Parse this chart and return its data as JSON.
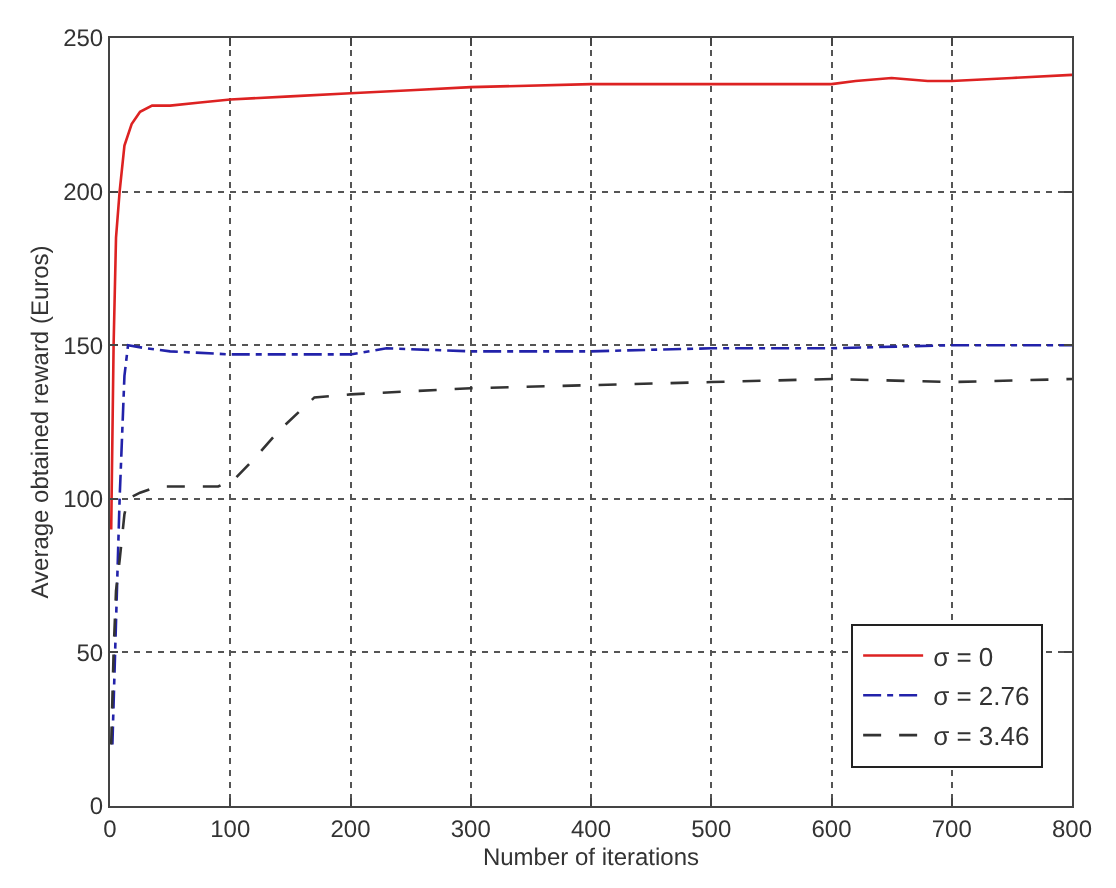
{
  "chart_data": {
    "type": "line",
    "xlabel": "Number of iterations",
    "ylabel": "Average obtained reward (Euros)",
    "xlim": [
      0,
      800
    ],
    "ylim": [
      0,
      250
    ],
    "xticks": [
      0,
      100,
      200,
      300,
      400,
      500,
      600,
      700,
      800
    ],
    "yticks": [
      0,
      50,
      100,
      150,
      200,
      250
    ],
    "grid": true,
    "legend": "bottom right",
    "marker": "none",
    "series": [
      {
        "name": "σ = 0",
        "color": "#dd2222",
        "line_style": "solid",
        "x": [
          1,
          3,
          5,
          8,
          12,
          18,
          25,
          35,
          50,
          75,
          100,
          150,
          200,
          250,
          300,
          400,
          500,
          550,
          600,
          620,
          650,
          680,
          700,
          750,
          800
        ],
        "values": [
          90,
          150,
          185,
          200,
          215,
          222,
          226,
          228,
          228,
          229,
          230,
          231,
          232,
          233,
          234,
          235,
          235,
          235,
          235,
          236,
          237,
          236,
          236,
          237,
          238
        ]
      },
      {
        "name": "σ = 2.76",
        "color": "#2222aa",
        "line_style": "dashdot",
        "x": [
          2,
          5,
          8,
          12,
          15,
          30,
          50,
          100,
          150,
          200,
          230,
          300,
          400,
          500,
          600,
          700,
          800
        ],
        "values": [
          20,
          60,
          100,
          140,
          150,
          149,
          148,
          147,
          147,
          147,
          149,
          148,
          148,
          149,
          149,
          150,
          150
        ]
      },
      {
        "name": "σ = 3.46",
        "color": "#333333",
        "line_style": "dashed",
        "x": [
          1,
          3,
          5,
          8,
          12,
          15,
          25,
          40,
          60,
          90,
          105,
          120,
          140,
          170,
          200,
          250,
          300,
          400,
          500,
          600,
          700,
          800
        ],
        "values": [
          20,
          50,
          70,
          80,
          95,
          100,
          102,
          104,
          104,
          104,
          107,
          113,
          122,
          133,
          134,
          135,
          136,
          137,
          138,
          139,
          138,
          139
        ]
      }
    ]
  }
}
